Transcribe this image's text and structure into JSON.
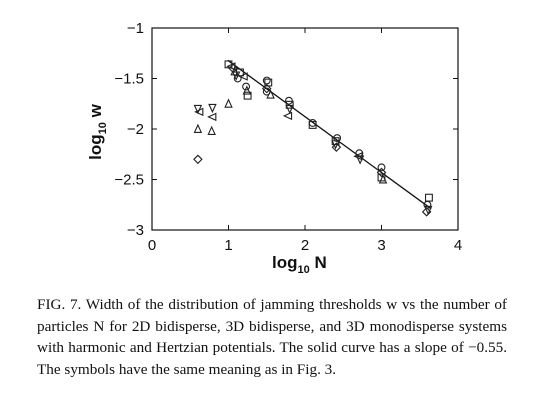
{
  "chart_data": {
    "type": "scatter",
    "xlabel_base": "log",
    "xlabel_sub": "10",
    "xlabel_var": " N",
    "ylabel_base": "log",
    "ylabel_sub": "10",
    "ylabel_var": " w",
    "xlim": [
      0,
      4
    ],
    "ylim": [
      -3,
      -1
    ],
    "xticks": [
      0,
      1,
      2,
      3,
      4
    ],
    "xtick_labels": [
      "0",
      "1",
      "2",
      "3",
      "4"
    ],
    "yticks": [
      -1,
      -1.5,
      -2,
      -2.5,
      -3
    ],
    "ytick_labels": [
      "−1",
      "−1.5",
      "−2",
      "−2.5",
      "−3"
    ],
    "fit_line": {
      "x": [
        0.99,
        3.65
      ],
      "y": [
        -1.32,
        -2.79
      ],
      "slope": -0.55
    },
    "points": [
      {
        "x": 1.0,
        "y": -1.36,
        "marker": "square"
      },
      {
        "x": 1.04,
        "y": -1.38,
        "marker": "triangle-left"
      },
      {
        "x": 1.06,
        "y": -1.4,
        "marker": "diamond"
      },
      {
        "x": 1.08,
        "y": -1.43,
        "marker": "triangle-up"
      },
      {
        "x": 1.1,
        "y": -1.47,
        "marker": "triangle-down"
      },
      {
        "x": 1.12,
        "y": -1.5,
        "marker": "circle"
      },
      {
        "x": 1.15,
        "y": -1.44,
        "marker": "square"
      },
      {
        "x": 1.2,
        "y": -1.48,
        "marker": "triangle-left"
      },
      {
        "x": 1.23,
        "y": -1.58,
        "marker": "circle"
      },
      {
        "x": 1.25,
        "y": -1.67,
        "marker": "square"
      },
      {
        "x": 1.24,
        "y": -1.62,
        "marker": "triangle-up"
      },
      {
        "x": 0.6,
        "y": -1.8,
        "marker": "triangle-down"
      },
      {
        "x": 0.62,
        "y": -1.83,
        "marker": "triangle-left"
      },
      {
        "x": 0.6,
        "y": -2.0,
        "marker": "triangle-up"
      },
      {
        "x": 0.79,
        "y": -1.79,
        "marker": "triangle-down"
      },
      {
        "x": 0.79,
        "y": -1.88,
        "marker": "triangle-left"
      },
      {
        "x": 0.78,
        "y": -2.02,
        "marker": "triangle-up"
      },
      {
        "x": 0.6,
        "y": -2.3,
        "marker": "diamond"
      },
      {
        "x": 1.0,
        "y": -1.75,
        "marker": "triangle-up"
      },
      {
        "x": 1.5,
        "y": -1.52,
        "marker": "circle"
      },
      {
        "x": 1.52,
        "y": -1.54,
        "marker": "square"
      },
      {
        "x": 1.5,
        "y": -1.6,
        "marker": "diamond"
      },
      {
        "x": 1.5,
        "y": -1.63,
        "marker": "circle"
      },
      {
        "x": 1.55,
        "y": -1.66,
        "marker": "triangle-up"
      },
      {
        "x": 1.79,
        "y": -1.72,
        "marker": "circle"
      },
      {
        "x": 1.8,
        "y": -1.76,
        "marker": "square"
      },
      {
        "x": 1.8,
        "y": -1.8,
        "marker": "triangle-down"
      },
      {
        "x": 1.78,
        "y": -1.87,
        "marker": "triangle-left"
      },
      {
        "x": 2.1,
        "y": -1.94,
        "marker": "circle"
      },
      {
        "x": 2.1,
        "y": -1.96,
        "marker": "square"
      },
      {
        "x": 2.42,
        "y": -2.09,
        "marker": "circle"
      },
      {
        "x": 2.4,
        "y": -2.12,
        "marker": "square"
      },
      {
        "x": 2.4,
        "y": -2.15,
        "marker": "triangle-down"
      },
      {
        "x": 2.41,
        "y": -2.18,
        "marker": "diamond"
      },
      {
        "x": 2.71,
        "y": -2.24,
        "marker": "circle"
      },
      {
        "x": 2.7,
        "y": -2.27,
        "marker": "triangle-left"
      },
      {
        "x": 2.72,
        "y": -2.3,
        "marker": "triangle-down"
      },
      {
        "x": 3.0,
        "y": -2.38,
        "marker": "circle"
      },
      {
        "x": 3.0,
        "y": -2.43,
        "marker": "diamond"
      },
      {
        "x": 3.0,
        "y": -2.48,
        "marker": "square"
      },
      {
        "x": 3.02,
        "y": -2.5,
        "marker": "triangle-up"
      },
      {
        "x": 3.62,
        "y": -2.68,
        "marker": "square"
      },
      {
        "x": 3.6,
        "y": -2.75,
        "marker": "circle"
      },
      {
        "x": 3.61,
        "y": -2.8,
        "marker": "triangle-down"
      },
      {
        "x": 3.59,
        "y": -2.82,
        "marker": "diamond"
      }
    ]
  },
  "caption": "FIG. 7. Width of the distribution of jamming thresholds w vs the number of particles N for 2D bidisperse, 3D bidisperse, and 3D monodisperse systems with harmonic and Hertzian potentials. The solid curve has a slope of −0.55. The symbols have the same meaning as in Fig. 3."
}
